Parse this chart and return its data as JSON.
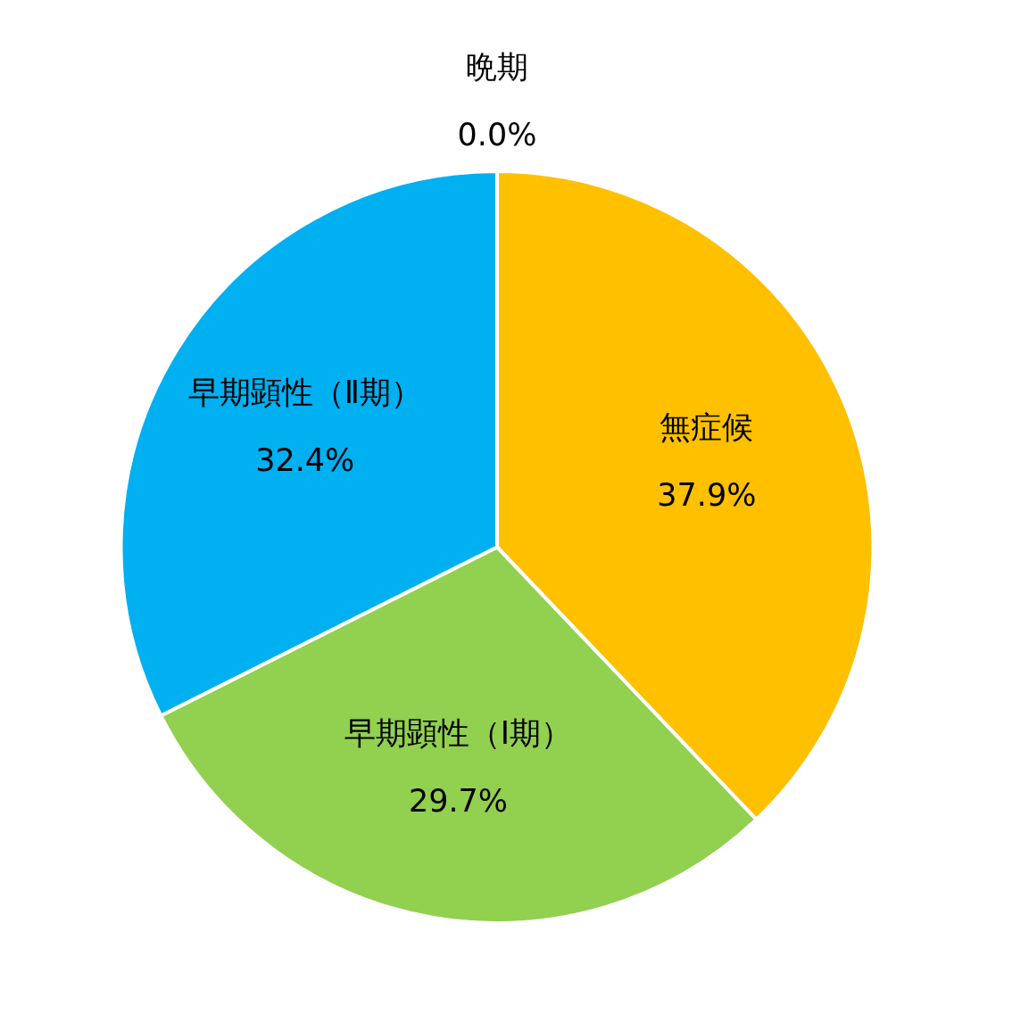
{
  "chart_data": {
    "type": "pie",
    "categories": [
      "無症候",
      "早期顕性（Ⅰ期）",
      "早期顕性（Ⅱ期）",
      "晩期"
    ],
    "values": [
      37.9,
      29.7,
      32.4,
      0.0
    ],
    "value_labels": [
      "37.9%",
      "29.7%",
      "32.4%",
      "0.0%"
    ],
    "colors": [
      "#ffc000",
      "#92d050",
      "#00b0f0",
      "#7f7f7f"
    ],
    "legend": false
  }
}
